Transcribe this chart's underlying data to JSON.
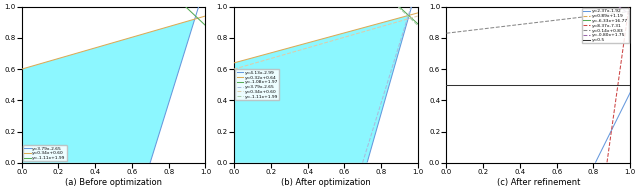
{
  "panels": [
    {
      "title": "(a) Before optimization",
      "xlim": [
        0.0,
        1.0
      ],
      "ylim": [
        0.0,
        1.0
      ],
      "lines": [
        {
          "slope": 3.79,
          "intercept": -2.65,
          "color": "#6699dd",
          "linestyle": "-",
          "label": "y=3.79x-2.65"
        },
        {
          "slope": 0.34,
          "intercept": 0.6,
          "color": "#ddaa55",
          "linestyle": "-",
          "label": "y=0.34x+0.60"
        },
        {
          "slope": -1.11,
          "intercept": 1.99,
          "color": "#55aa55",
          "linestyle": "-",
          "label": "y=-1.11x+1.99"
        }
      ],
      "fill_inequalities": [
        {
          "slope": 3.79,
          "intercept": -2.65,
          "side": "above"
        },
        {
          "slope": 0.34,
          "intercept": 0.6,
          "side": "below"
        },
        {
          "slope": -1.11,
          "intercept": 1.99,
          "side": "below"
        }
      ],
      "legend_loc": "lower left"
    },
    {
      "title": "(b) After optimization",
      "xlim": [
        0.0,
        1.0
      ],
      "ylim": [
        0.0,
        1.0
      ],
      "lines": [
        {
          "slope": 4.13,
          "intercept": -2.99,
          "color": "#6699dd",
          "linestyle": "-",
          "label": "y=4.13x-2.99"
        },
        {
          "slope": 0.32,
          "intercept": 0.64,
          "color": "#ddaa55",
          "linestyle": "-",
          "label": "y=0.32x+0.64"
        },
        {
          "slope": -1.08,
          "intercept": 1.97,
          "color": "#55aa55",
          "linestyle": "-",
          "label": "y=-1.08x+1.97"
        },
        {
          "slope": 3.79,
          "intercept": -2.65,
          "color": "#aabbdd",
          "linestyle": "--",
          "label": "y=3.79x-2.65"
        },
        {
          "slope": 0.34,
          "intercept": 0.6,
          "color": "#ddccaa",
          "linestyle": "--",
          "label": "y=0.34x+0.60"
        },
        {
          "slope": -1.11,
          "intercept": 1.99,
          "color": "#aaccaa",
          "linestyle": "--",
          "label": "y=-1.11x+1.99"
        }
      ],
      "fill_inequalities": [
        {
          "slope": 4.13,
          "intercept": -2.99,
          "side": "above"
        },
        {
          "slope": 0.32,
          "intercept": 0.64,
          "side": "below"
        },
        {
          "slope": -1.08,
          "intercept": 1.97,
          "side": "below"
        }
      ],
      "legend_loc": "center left"
    },
    {
      "title": "(c) After refinement",
      "xlim": [
        0.0,
        1.0
      ],
      "ylim": [
        0.0,
        1.0
      ],
      "lines": [
        {
          "slope": 2.37,
          "intercept": -1.92,
          "color": "#6699dd",
          "linestyle": "-",
          "label": "y=2.37x-1.92"
        },
        {
          "slope": 0.89,
          "intercept": 1.19,
          "color": "#ddaa55",
          "linestyle": "--",
          "label": "y=0.89x+1.19"
        },
        {
          "slope": -6.33,
          "intercept": 16.77,
          "color": "#55aa55",
          "linestyle": "-",
          "label": "y=-6.33x+16.77"
        },
        {
          "slope": 8.37,
          "intercept": -7.31,
          "color": "#cc4444",
          "linestyle": "--",
          "label": "y=8.37x-7.31"
        },
        {
          "slope": 0.14,
          "intercept": 0.83,
          "color": "#888888",
          "linestyle": "--",
          "label": "y=0.14x+0.83"
        },
        {
          "slope": -0.8,
          "intercept": 1.75,
          "color": "#9966aa",
          "linestyle": "--",
          "label": "y=-0.80x+1.75"
        },
        {
          "slope": 0.0,
          "intercept": 0.5,
          "color": "#333333",
          "linestyle": "-",
          "label": "y=0.5"
        }
      ],
      "fill_inequalities": [
        {
          "slope": 2.37,
          "intercept": -1.92,
          "side": "above"
        },
        {
          "slope": 0.89,
          "intercept": 1.19,
          "side": "below"
        },
        {
          "slope": -6.33,
          "intercept": 16.77,
          "side": "below"
        },
        {
          "slope": 8.37,
          "intercept": -7.31,
          "side": "above"
        },
        {
          "slope": 0.14,
          "intercept": 0.83,
          "side": "below"
        },
        {
          "slope": -0.8,
          "intercept": 1.75,
          "side": "above"
        },
        {
          "slope": 0.0,
          "intercept": 0.5,
          "side": "above"
        }
      ],
      "legend_loc": "upper right"
    }
  ],
  "fill_color": "#00eeff",
  "fill_alpha": 0.45,
  "background_color": "#ffffff"
}
